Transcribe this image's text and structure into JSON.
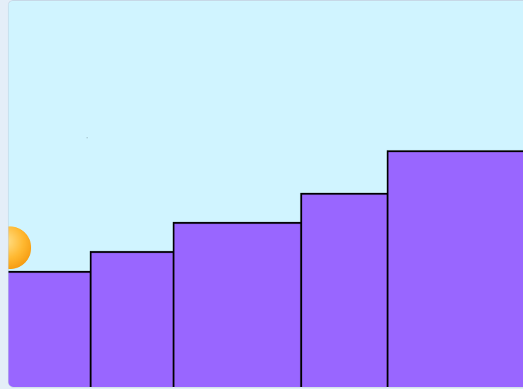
{
  "game": {
    "sky_color": "#d0f4ff",
    "step_color": "#9966ff",
    "step_outline_color": "#000000",
    "ball_color": "#ffb830",
    "ball_highlight_color": "#ffe08a",
    "steps": [
      {
        "name": "step-1"
      },
      {
        "name": "step-2"
      },
      {
        "name": "step-3"
      },
      {
        "name": "step-4"
      },
      {
        "name": "step-5"
      }
    ],
    "player": {
      "icon": "ball-icon"
    }
  }
}
